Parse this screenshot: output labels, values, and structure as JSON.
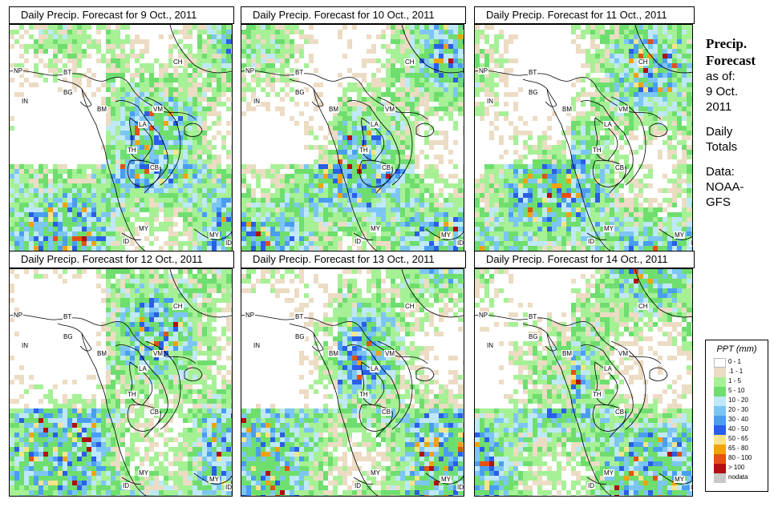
{
  "panels": [
    {
      "title": "Daily Precip. Forecast for  9 Oct., 2011"
    },
    {
      "title": "Daily Precip. Forecast for  10 Oct., 2011"
    },
    {
      "title": "Daily Precip. Forecast for  11 Oct., 2011"
    },
    {
      "title": "Daily Precip. Forecast for  12 Oct., 2011"
    },
    {
      "title": "Daily Precip. Forecast for  13 Oct., 2011"
    },
    {
      "title": "Daily Precip. Forecast for  14 Oct., 2011"
    }
  ],
  "country_labels": [
    "CH",
    "NP",
    "BT",
    "BG",
    "IN",
    "BM",
    "VM",
    "LA",
    "TH",
    "CB",
    "MY",
    "ID",
    "MY",
    "ID"
  ],
  "sidebar": {
    "heading_line1": "Precip.",
    "heading_line2": "Forecast",
    "asof": "as of:",
    "date_line1": "9 Oct.",
    "date_line2": "2011",
    "daily1": "Daily",
    "daily2": "Totals",
    "data1": "Data:",
    "data2": "NOAA-",
    "data3": "GFS"
  },
  "legend": {
    "title": "PPT (mm)",
    "items": [
      {
        "label": "0 - 1",
        "color": "#ffffff"
      },
      {
        "label": ".1 - 1",
        "color": "#ecdcc4"
      },
      {
        "label": "1 - 5",
        "color": "#a6f096"
      },
      {
        "label": "5 - 10",
        "color": "#6ede6e"
      },
      {
        "label": "10 - 20",
        "color": "#bfe8f8"
      },
      {
        "label": "20 - 30",
        "color": "#7cc6f4"
      },
      {
        "label": "30 - 40",
        "color": "#4a9ef0"
      },
      {
        "label": "40 - 50",
        "color": "#2a5ee6"
      },
      {
        "label": "50 - 65",
        "color": "#f8e48a"
      },
      {
        "label": "65 - 80",
        "color": "#f2a20e"
      },
      {
        "label": "80 - 100",
        "color": "#e25210"
      },
      {
        "label": "> 100",
        "color": "#b01010"
      },
      {
        "label": "nodata",
        "color": "#c8c8c8"
      }
    ]
  }
}
